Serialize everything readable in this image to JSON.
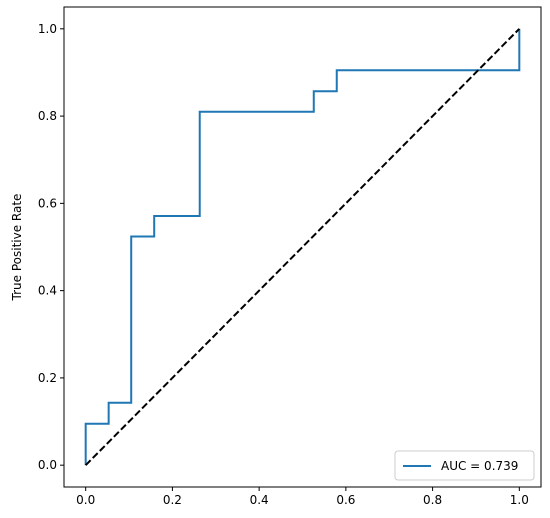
{
  "chart_data": {
    "type": "line",
    "title": "",
    "xlabel": "",
    "ylabel": "True Positive Rate",
    "xlim": [
      -0.05,
      1.05
    ],
    "ylim": [
      -0.05,
      1.05
    ],
    "grid": false,
    "legend_position": "lower-right",
    "x_ticks": [
      0.0,
      0.2,
      0.4,
      0.6,
      0.8,
      1.0
    ],
    "x_tick_labels": [
      "0.0",
      "0.2",
      "0.4",
      "0.6",
      "0.8",
      "1.0"
    ],
    "y_ticks": [
      0.0,
      0.2,
      0.4,
      0.6,
      0.8,
      1.0
    ],
    "y_tick_labels": [
      "0.0",
      "0.2",
      "0.4",
      "0.6",
      "0.8",
      "1.0"
    ],
    "series": [
      {
        "name": "AUC = 0.739",
        "color": "#1f77b4",
        "style": "solid",
        "step": true,
        "x": [
          0.0,
          0.0,
          0.053,
          0.053,
          0.105,
          0.105,
          0.158,
          0.158,
          0.263,
          0.263,
          0.526,
          0.526,
          0.579,
          0.579,
          1.0,
          1.0
        ],
        "y": [
          0.0,
          0.095,
          0.095,
          0.143,
          0.143,
          0.524,
          0.524,
          0.571,
          0.571,
          0.81,
          0.81,
          0.857,
          0.857,
          0.905,
          0.905,
          1.0
        ]
      },
      {
        "name": "",
        "color": "#000000",
        "style": "dashed",
        "x": [
          0.0,
          1.0
        ],
        "y": [
          0.0,
          1.0
        ]
      }
    ]
  }
}
